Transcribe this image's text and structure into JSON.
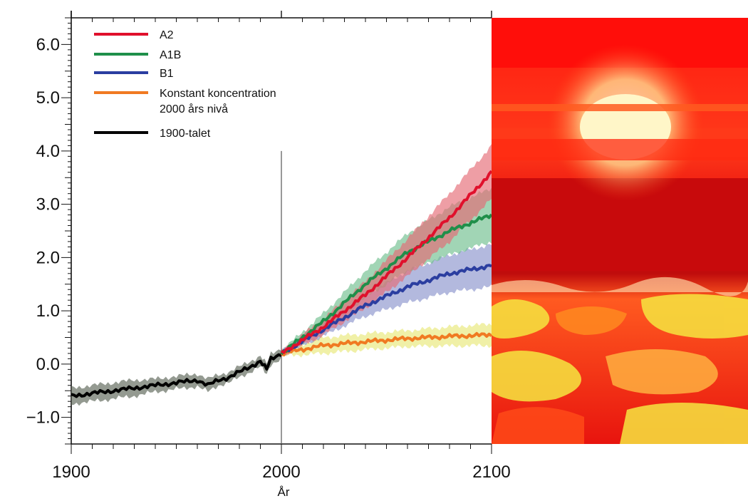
{
  "chart_data": {
    "type": "line",
    "title": "",
    "xlabel": "År",
    "ylabel": "",
    "xlim": [
      1900,
      2100
    ],
    "ylim": [
      -1.5,
      6.5
    ],
    "x_ticks": [
      "1900",
      "2000",
      "2100"
    ],
    "y_ticks": [
      "6.0",
      "5.0",
      "4.0",
      "3.0",
      "2.0",
      "1.0",
      "0.0",
      "−1.0"
    ],
    "divider_x": 2000,
    "grid": false,
    "legend_placement": "top-left",
    "legend": [
      {
        "label": "A2",
        "color": "#e0102c"
      },
      {
        "label": "A1B",
        "color": "#1f8f4a"
      },
      {
        "label": "B1",
        "color": "#2b3ea0"
      },
      {
        "label": "Konstant koncentration",
        "label2": "2000 års nivå",
        "color": "#f07a22"
      },
      {
        "label": "1900-talet",
        "color": "#000000"
      }
    ],
    "series": [
      {
        "name": "1900-talet",
        "color": "#000000",
        "band_color": "#5a6456",
        "x": [
          1900,
          1910,
          1920,
          1930,
          1940,
          1950,
          1960,
          1965,
          1970,
          1975,
          1980,
          1985,
          1990,
          1993,
          1995,
          2000
        ],
        "y": [
          -0.6,
          -0.55,
          -0.5,
          -0.45,
          -0.4,
          -0.35,
          -0.3,
          -0.4,
          -0.3,
          -0.25,
          -0.15,
          -0.05,
          0.05,
          -0.1,
          0.1,
          0.2
        ],
        "band": [
          0.15,
          0.15,
          0.15,
          0.15,
          0.12,
          0.12,
          0.12,
          0.12,
          0.1,
          0.1,
          0.1,
          0.1,
          0.1,
          0.1,
          0.1,
          0.1
        ]
      },
      {
        "name": "A2",
        "color": "#e0102c",
        "band_color": "#e56a75",
        "x": [
          2000,
          2020,
          2040,
          2060,
          2080,
          2100
        ],
        "y": [
          0.2,
          0.7,
          1.3,
          2.0,
          2.75,
          3.6
        ],
        "band": [
          0.05,
          0.15,
          0.25,
          0.35,
          0.45,
          0.5
        ]
      },
      {
        "name": "A1B",
        "color": "#1f8f4a",
        "band_color": "#6fbf8e",
        "x": [
          2000,
          2020,
          2040,
          2060,
          2080,
          2100
        ],
        "y": [
          0.2,
          0.8,
          1.5,
          2.1,
          2.5,
          2.8
        ],
        "band": [
          0.05,
          0.15,
          0.25,
          0.35,
          0.45,
          0.5
        ]
      },
      {
        "name": "B1",
        "color": "#2b3ea0",
        "band_color": "#8a93cc",
        "x": [
          2000,
          2020,
          2040,
          2060,
          2080,
          2100
        ],
        "y": [
          0.2,
          0.65,
          1.1,
          1.45,
          1.7,
          1.85
        ],
        "band": [
          0.05,
          0.12,
          0.2,
          0.3,
          0.35,
          0.4
        ]
      },
      {
        "name": "Konstant koncentration 2000 års nivå",
        "color": "#f07a22",
        "band_color": "#e8e878",
        "x": [
          2000,
          2020,
          2040,
          2060,
          2080,
          2100
        ],
        "y": [
          0.2,
          0.35,
          0.42,
          0.48,
          0.52,
          0.55
        ],
        "band": [
          0.05,
          0.15,
          0.15,
          0.15,
          0.18,
          0.2
        ]
      }
    ]
  },
  "photo": {
    "subject": "sunset-over-red-clouds"
  }
}
